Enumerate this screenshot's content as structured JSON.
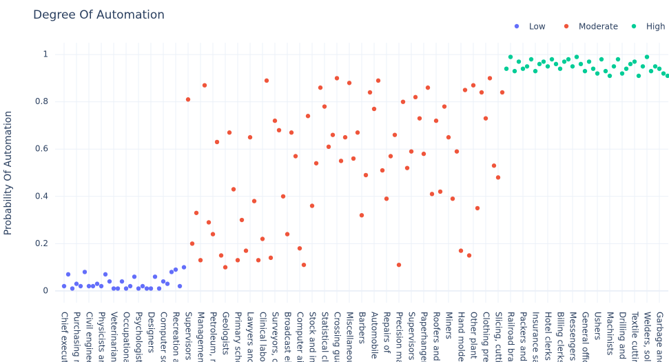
{
  "chart_data": {
    "type": "scatter",
    "title": "Degree Of Automation",
    "y_label": "Probability Of Automation",
    "categories": [
      "Chief execut",
      null,
      null,
      "Purchasing n",
      null,
      null,
      "Civil enginee",
      null,
      null,
      "Physicists ar",
      null,
      null,
      "Veterinarian",
      null,
      null,
      "Occupational",
      null,
      null,
      "Psychologist",
      null,
      null,
      "Designers",
      null,
      null,
      "Computer sc",
      null,
      null,
      "Recreation a",
      null,
      null,
      "Supervisors",
      null,
      null,
      "Managemen",
      null,
      null,
      "Petroleum, r",
      null,
      null,
      "Geologists",
      null,
      null,
      "Primary scho",
      null,
      null,
      "Lawyers anc",
      null,
      null,
      "Clinical labo",
      null,
      null,
      "Surveyors, c",
      null,
      null,
      "Broadcast ei",
      null,
      null,
      "Computer ai",
      null,
      null,
      "Stock and in",
      null,
      null,
      "Statistical cl",
      null,
      null,
      "Crossing gua",
      null,
      null,
      "Miscellaneou",
      null,
      null,
      "Barbers",
      null,
      null,
      "Automobile",
      null,
      null,
      "Repairs of",
      null,
      null,
      "Precision ma",
      null,
      null,
      "Supervisors",
      null,
      null,
      "Paperhanger",
      null,
      null,
      "Roofers and",
      null,
      null,
      "Miners",
      null,
      null,
      "Hand molde",
      null,
      null,
      "Other plant",
      null,
      null,
      "Clothing pre",
      null,
      null,
      "Slicing, cutti",
      null,
      null,
      "Railroad bra",
      null,
      null,
      "Packers and",
      null,
      null,
      "Insurance sa",
      null,
      null,
      "Hotel clerks",
      null,
      null,
      "Billing clerks",
      null,
      null,
      "Messengers",
      null,
      null,
      "General offic",
      null,
      null,
      "Ushers",
      null,
      null,
      "Machinists",
      null,
      null,
      "Drilling and",
      null,
      null,
      "Textile cuttir",
      null,
      null,
      "Welders, sol",
      null,
      null,
      "Garbage anc",
      null,
      null
    ],
    "series": [
      {
        "name": "Low",
        "color": "#636efa",
        "values": [
          0.02,
          0.07,
          0.01,
          0.03,
          0.02,
          0.08,
          0.02,
          0.02,
          0.03,
          0.02,
          0.07,
          0.04,
          0.01,
          0.01,
          0.04,
          0.01,
          0.02,
          0.06,
          0.01,
          0.02,
          0.01,
          0.01,
          0.06,
          0.01,
          0.04,
          0.03,
          0.08,
          0.09,
          0.02,
          0.1,
          null,
          null,
          null,
          null,
          null,
          null,
          null,
          null,
          null,
          null,
          null,
          null,
          null,
          null,
          null,
          null,
          null,
          null,
          null,
          null,
          null,
          null,
          null,
          null,
          null,
          null,
          null,
          null,
          null,
          null,
          null,
          null,
          null,
          null,
          null,
          null,
          null,
          null,
          null,
          null,
          null,
          null,
          null,
          null,
          null,
          null,
          null,
          null,
          null,
          null,
          null,
          null,
          null,
          null,
          null,
          null,
          null,
          null,
          null,
          null,
          null,
          null,
          null,
          null,
          null,
          null,
          null,
          null,
          null,
          null,
          null,
          null,
          null,
          null,
          null,
          null,
          null,
          null,
          null,
          null,
          null,
          null,
          null,
          null,
          null,
          null,
          null,
          null,
          null,
          null,
          null,
          null,
          null,
          null,
          null,
          null,
          null,
          null,
          null,
          null,
          null,
          null,
          null,
          null,
          null,
          null,
          null,
          null,
          null,
          null,
          null,
          null,
          null,
          null,
          null,
          null,
          null
        ]
      },
      {
        "name": "Moderate",
        "color": "#ef553b",
        "values": [
          null,
          null,
          null,
          null,
          null,
          null,
          null,
          null,
          null,
          null,
          null,
          null,
          null,
          null,
          null,
          null,
          null,
          null,
          null,
          null,
          null,
          null,
          null,
          null,
          null,
          null,
          null,
          null,
          null,
          null,
          0.81,
          0.2,
          0.33,
          0.13,
          0.87,
          0.29,
          0.24,
          0.63,
          0.15,
          0.1,
          0.67,
          0.43,
          0.13,
          0.3,
          0.17,
          0.65,
          0.38,
          0.13,
          0.22,
          0.89,
          0.14,
          0.72,
          0.68,
          0.4,
          0.24,
          0.67,
          0.57,
          0.18,
          0.11,
          0.74,
          0.36,
          0.54,
          0.86,
          0.78,
          0.61,
          0.66,
          0.9,
          0.55,
          0.65,
          0.88,
          0.56,
          0.67,
          0.32,
          0.49,
          0.84,
          0.77,
          0.89,
          0.51,
          0.39,
          0.57,
          0.66,
          0.11,
          0.8,
          0.52,
          0.59,
          0.82,
          0.73,
          0.58,
          0.86,
          0.41,
          0.72,
          0.42,
          0.78,
          0.65,
          0.39,
          0.59,
          0.17,
          0.85,
          0.15,
          0.87,
          0.35,
          0.84,
          0.73,
          0.9,
          0.53,
          0.48,
          0.84,
          null,
          null,
          null,
          null,
          null,
          null,
          null,
          null,
          null,
          null,
          null,
          null,
          null,
          null,
          null,
          null,
          null,
          null,
          null,
          null,
          null,
          null,
          null,
          null,
          null,
          null,
          null,
          null,
          null,
          null,
          null,
          null,
          null,
          null,
          null,
          null,
          null,
          null,
          null,
          null
        ]
      },
      {
        "name": "High",
        "color": "#00cc96",
        "values": [
          null,
          null,
          null,
          null,
          null,
          null,
          null,
          null,
          null,
          null,
          null,
          null,
          null,
          null,
          null,
          null,
          null,
          null,
          null,
          null,
          null,
          null,
          null,
          null,
          null,
          null,
          null,
          null,
          null,
          null,
          null,
          null,
          null,
          null,
          null,
          null,
          null,
          null,
          null,
          null,
          null,
          null,
          null,
          null,
          null,
          null,
          null,
          null,
          null,
          null,
          null,
          null,
          null,
          null,
          null,
          null,
          null,
          null,
          null,
          null,
          null,
          null,
          null,
          null,
          null,
          null,
          null,
          null,
          null,
          null,
          null,
          null,
          null,
          null,
          null,
          null,
          null,
          null,
          null,
          null,
          null,
          null,
          null,
          null,
          null,
          null,
          null,
          null,
          null,
          null,
          null,
          null,
          null,
          null,
          null,
          null,
          null,
          null,
          null,
          null,
          null,
          null,
          null,
          null,
          null,
          null,
          null,
          0.94,
          0.99,
          0.93,
          0.97,
          0.94,
          0.95,
          0.98,
          0.93,
          0.96,
          0.97,
          0.95,
          0.98,
          0.96,
          0.94,
          0.97,
          0.98,
          0.95,
          0.99,
          0.96,
          0.93,
          0.97,
          0.94,
          0.92,
          0.98,
          0.93,
          0.91,
          0.95,
          0.98,
          0.92,
          0.94,
          0.96,
          0.97,
          0.91,
          0.95,
          0.99,
          0.93,
          0.95,
          0.94,
          0.92,
          0.91
        ]
      }
    ],
    "ylim": [
      -0.05,
      1.05
    ],
    "yticks": [
      0,
      0.2,
      0.4,
      0.6,
      0.8,
      1
    ],
    "grid": true
  }
}
